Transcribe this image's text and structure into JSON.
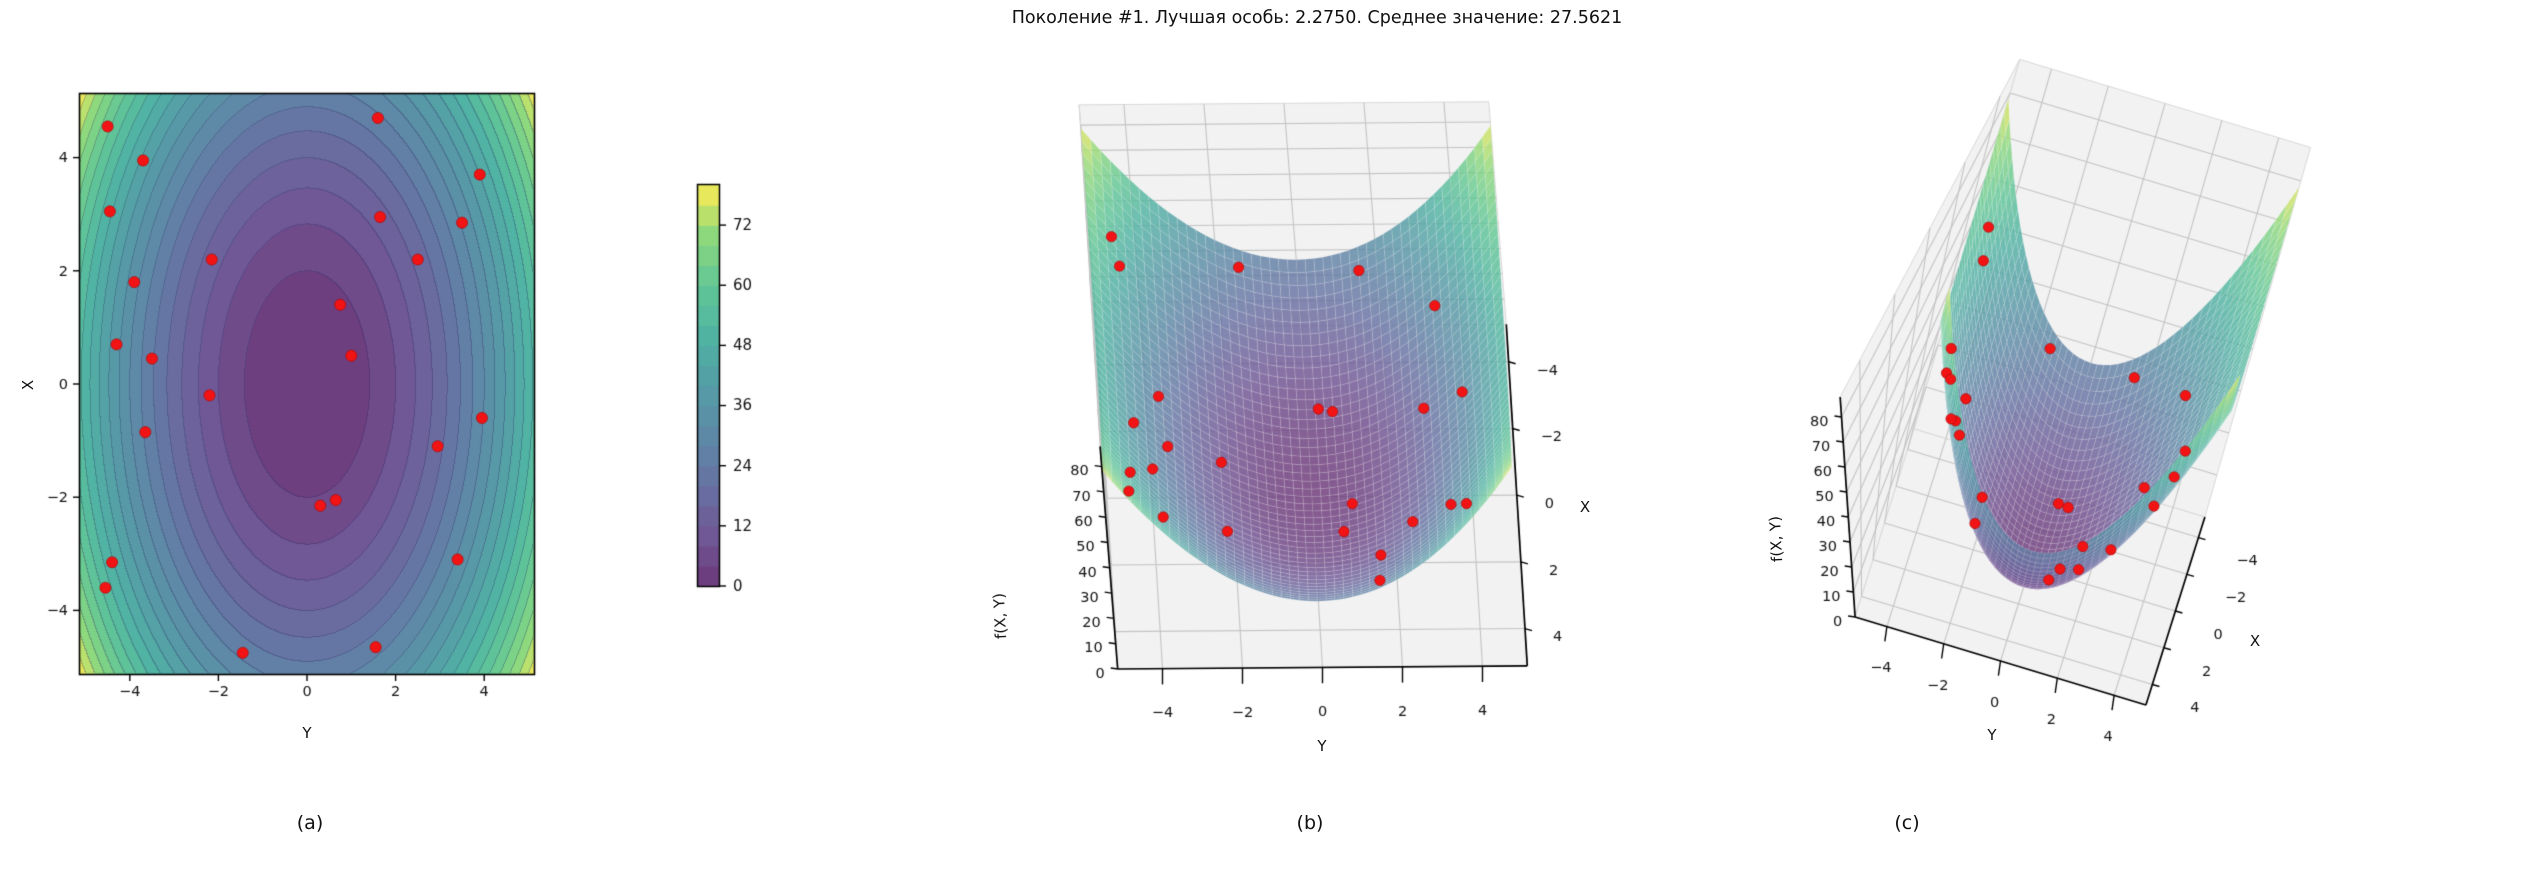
{
  "title": "Поколение #1. Лучшая особь: 2.2750. Среднее значение: 27.5621",
  "generation": 1,
  "best_individual": "2.2750",
  "mean_value": "27.5621",
  "captions": {
    "a": "(a)",
    "b": "(b)",
    "c": "(c)"
  },
  "point_color": "#f21414",
  "chart_data": [
    {
      "id": "a",
      "type": "contour",
      "xlabel": "Y",
      "ylabel": "X",
      "x_ticks": [
        -4,
        -2,
        0,
        2,
        4
      ],
      "y_ticks": [
        -4,
        -2,
        0,
        2,
        4
      ],
      "xlim": [
        -5.12,
        5.12
      ],
      "ylim": [
        -5.12,
        5.12
      ],
      "z_function": "X^2 + 2*Y^2",
      "levels_step": 4,
      "vmin": 0,
      "vmax": 80,
      "colormap": "viridis",
      "colorbar_ticks": [
        0,
        12,
        24,
        36,
        48,
        60,
        72
      ],
      "scatter": "population"
    },
    {
      "id": "b",
      "type": "surface3d",
      "xlabel": "Y",
      "ylabel": "X",
      "zlabel": "f(X, Y)",
      "x_ticks": [
        -4,
        -2,
        0,
        2,
        4
      ],
      "y_ticks": [
        -4,
        -2,
        0,
        2,
        4
      ],
      "z_ticks": [
        0,
        10,
        20,
        30,
        40,
        50,
        60,
        70,
        80
      ],
      "xlim": [
        -5.12,
        5.12
      ],
      "ylim": [
        -5.12,
        5.12
      ],
      "zlim": [
        0,
        88
      ],
      "z_function": "X^2 + 2*Y^2",
      "colormap": "viridis",
      "scatter": "population"
    },
    {
      "id": "c",
      "type": "surface3d",
      "xlabel": "Y",
      "ylabel": "X",
      "zlabel": "f(X, Y)",
      "x_ticks": [
        -4,
        -2,
        0,
        2,
        4
      ],
      "y_ticks": [
        -4,
        -2,
        0,
        2,
        4
      ],
      "z_ticks": [
        0,
        10,
        20,
        30,
        40,
        50,
        60,
        70,
        80
      ],
      "xlim": [
        -5.12,
        5.12
      ],
      "ylim": [
        -5.12,
        5.12
      ],
      "zlim": [
        0,
        88
      ],
      "z_function": "X^2 + 2*Y^2",
      "colormap": "viridis",
      "scatter": "population"
    }
  ],
  "population": [
    [
      -4.5,
      4.55
    ],
    [
      -3.7,
      3.95
    ],
    [
      -4.45,
      3.05
    ],
    [
      1.6,
      4.7
    ],
    [
      3.9,
      3.7
    ],
    [
      1.65,
      2.95
    ],
    [
      3.5,
      2.85
    ],
    [
      -2.15,
      2.2
    ],
    [
      2.5,
      2.2
    ],
    [
      -3.9,
      1.8
    ],
    [
      0.75,
      1.4
    ],
    [
      -4.3,
      0.7
    ],
    [
      -3.5,
      0.45
    ],
    [
      1.0,
      0.5
    ],
    [
      -2.2,
      -0.2
    ],
    [
      3.95,
      -0.6
    ],
    [
      -3.65,
      -0.85
    ],
    [
      2.95,
      -1.1
    ],
    [
      0.3,
      -2.15
    ],
    [
      0.65,
      -2.05
    ],
    [
      -4.4,
      -3.15
    ],
    [
      3.4,
      -3.1
    ],
    [
      -4.55,
      -3.6
    ],
    [
      -1.45,
      -4.75
    ],
    [
      1.55,
      -4.65
    ]
  ]
}
